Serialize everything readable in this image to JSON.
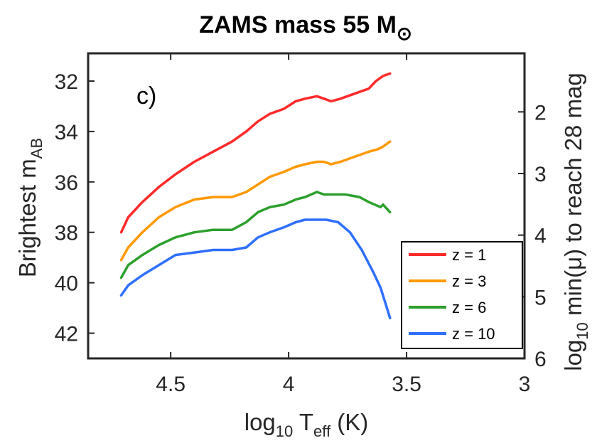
{
  "chart_data": {
    "type": "line",
    "title": {
      "main": "ZAMS mass 55 M",
      "symbol": "⊙"
    },
    "panel_label": "c)",
    "xlabel": {
      "prefix": "log",
      "sub": "10",
      "mid": " T",
      "sub2": "eff",
      "suffix": " (K)"
    },
    "ylabel": {
      "prefix": "Brightest m",
      "sub": "AB"
    },
    "y2label": {
      "prefix": "log",
      "sub": "10",
      "suffix": " min(μ) to reach 28 mag"
    },
    "xlim": [
      4.85,
      3.0
    ],
    "ylim": [
      30.9,
      43.0
    ],
    "y2lim": [
      1.05,
      6.0
    ],
    "x_reversed": true,
    "y_reversed": true,
    "xticks": [
      4.5,
      4,
      3.5,
      3
    ],
    "xtick_labels": [
      "4.5",
      "4",
      "3.5",
      "3"
    ],
    "yticks": [
      32,
      34,
      36,
      38,
      40,
      42
    ],
    "ytick_labels": [
      "32",
      "34",
      "36",
      "38",
      "40",
      "42"
    ],
    "y2ticks": [
      2,
      3,
      4,
      5,
      6
    ],
    "y2tick_labels": [
      "2",
      "3",
      "4",
      "5",
      "6"
    ],
    "legend_position": "bottom-right",
    "series": [
      {
        "name": "z = 1",
        "color": "#ff2a2a",
        "x": [
          4.71,
          4.68,
          4.62,
          4.55,
          4.48,
          4.4,
          4.32,
          4.24,
          4.18,
          4.13,
          4.08,
          4.02,
          3.97,
          3.93,
          3.88,
          3.85,
          3.82,
          3.78,
          3.72,
          3.66,
          3.63,
          3.6,
          3.57
        ],
        "y": [
          38.0,
          37.4,
          36.8,
          36.2,
          35.7,
          35.2,
          34.8,
          34.4,
          34.0,
          33.6,
          33.3,
          33.1,
          32.8,
          32.7,
          32.6,
          32.7,
          32.8,
          32.7,
          32.5,
          32.3,
          32.0,
          31.8,
          31.7
        ]
      },
      {
        "name": "z = 3",
        "color": "#ff9900",
        "x": [
          4.71,
          4.68,
          4.62,
          4.55,
          4.48,
          4.4,
          4.32,
          4.24,
          4.18,
          4.13,
          4.08,
          4.02,
          3.97,
          3.93,
          3.88,
          3.85,
          3.82,
          3.78,
          3.72,
          3.66,
          3.62,
          3.6,
          3.57
        ],
        "y": [
          39.1,
          38.6,
          38.0,
          37.4,
          37.0,
          36.7,
          36.6,
          36.6,
          36.4,
          36.1,
          35.8,
          35.6,
          35.4,
          35.3,
          35.2,
          35.2,
          35.3,
          35.2,
          35.0,
          34.8,
          34.7,
          34.6,
          34.4
        ]
      },
      {
        "name": "z = 6",
        "color": "#2ca02c",
        "x": [
          4.71,
          4.68,
          4.62,
          4.55,
          4.48,
          4.4,
          4.32,
          4.24,
          4.18,
          4.13,
          4.08,
          4.02,
          3.97,
          3.93,
          3.88,
          3.85,
          3.82,
          3.76,
          3.7,
          3.66,
          3.61,
          3.6,
          3.57
        ],
        "y": [
          39.8,
          39.3,
          38.9,
          38.5,
          38.2,
          38.0,
          37.9,
          37.9,
          37.6,
          37.2,
          37.0,
          36.9,
          36.7,
          36.6,
          36.4,
          36.5,
          36.5,
          36.5,
          36.6,
          36.8,
          37.0,
          36.9,
          37.2
        ]
      },
      {
        "name": "z = 10",
        "color": "#2f6fff",
        "x": [
          4.71,
          4.68,
          4.62,
          4.55,
          4.48,
          4.4,
          4.32,
          4.24,
          4.18,
          4.13,
          4.08,
          4.02,
          3.97,
          3.93,
          3.88,
          3.84,
          3.79,
          3.74,
          3.69,
          3.64,
          3.61,
          3.59,
          3.57
        ],
        "y": [
          40.5,
          40.1,
          39.7,
          39.3,
          38.9,
          38.8,
          38.7,
          38.7,
          38.6,
          38.2,
          38.0,
          37.8,
          37.6,
          37.5,
          37.5,
          37.5,
          37.6,
          38.0,
          38.7,
          39.6,
          40.2,
          40.8,
          41.4
        ]
      }
    ]
  }
}
